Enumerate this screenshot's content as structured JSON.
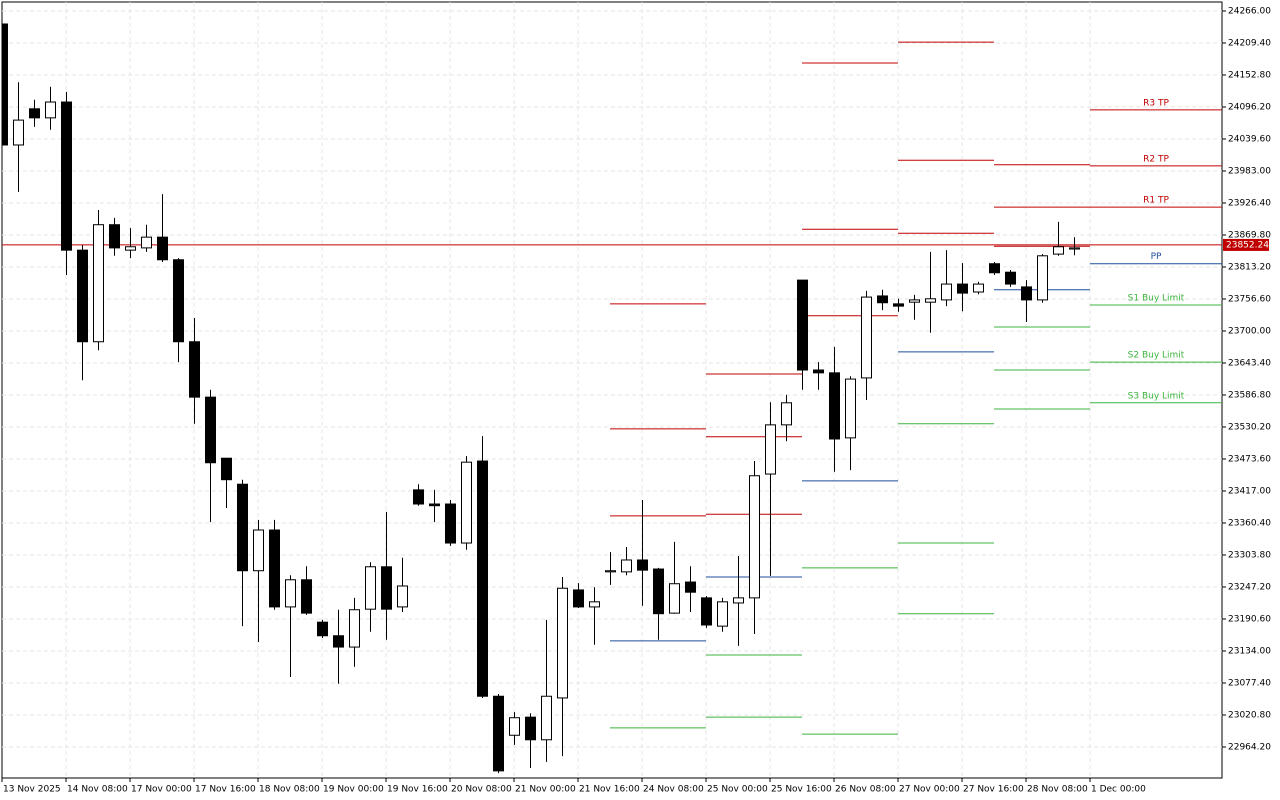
{
  "chart_data": {
    "type": "candlestick",
    "up_color": "#ffffff",
    "down_color": "#000000",
    "outline_color": "#000000",
    "grid": true,
    "ylim": [
      22909.4,
      24281.9
    ],
    "yticks": [
      {
        "value": 24266,
        "label": "24266.00"
      },
      {
        "value": 24209.4,
        "label": "24209.40"
      },
      {
        "value": 24152.8,
        "label": "24152.80"
      },
      {
        "value": 24096.2,
        "label": "24096.20"
      },
      {
        "value": 24039.6,
        "label": "24039.60"
      },
      {
        "value": 23983,
        "label": "23983.00"
      },
      {
        "value": 23926.4,
        "label": "23926.40"
      },
      {
        "value": 23869.8,
        "label": "23869.80"
      },
      {
        "value": 23813.2,
        "label": "23813.20"
      },
      {
        "value": 23756.6,
        "label": "23756.60"
      },
      {
        "value": 23700,
        "label": "23700.00"
      },
      {
        "value": 23643.4,
        "label": "23643.40"
      },
      {
        "value": 23586.8,
        "label": "23586.80"
      },
      {
        "value": 23530.2,
        "label": "23530.20"
      },
      {
        "value": 23473.6,
        "label": "23473.60"
      },
      {
        "value": 23417,
        "label": "23417.00"
      },
      {
        "value": 23360.4,
        "label": "23360.40"
      },
      {
        "value": 23303.8,
        "label": "23303.80"
      },
      {
        "value": 23247.2,
        "label": "23247.20"
      },
      {
        "value": 23190.6,
        "label": "23190.60"
      },
      {
        "value": 23134,
        "label": "23134.00"
      },
      {
        "value": 23077.4,
        "label": "23077.40"
      },
      {
        "value": 23020.8,
        "label": "23020.80"
      },
      {
        "value": 22964.2,
        "label": "22964.20"
      }
    ],
    "x_labels": [
      "13 Nov 2025",
      "14 Nov 08:00",
      "17 Nov 00:00",
      "17 Nov 16:00",
      "18 Nov 08:00",
      "19 Nov 00:00",
      "19 Nov 16:00",
      "20 Nov 08:00",
      "21 Nov 00:00",
      "21 Nov 16:00",
      "24 Nov 08:00",
      "25 Nov 00:00",
      "25 Nov 16:00",
      "26 Nov 08:00",
      "27 Nov 00:00",
      "27 Nov 16:00",
      "28 Nov 08:00",
      "1 Dec 00:00"
    ],
    "candles": [
      [
        24243,
        24243,
        24029,
        24029
      ],
      [
        24029,
        24140,
        23946,
        24073
      ],
      [
        24093,
        24109,
        24061,
        24077
      ],
      [
        24077,
        24132,
        24056,
        24105
      ],
      [
        24105,
        24123,
        23799,
        23843
      ],
      [
        23843,
        23852,
        23613,
        23681
      ],
      [
        23681,
        23914,
        23666,
        23888
      ],
      [
        23888,
        23900,
        23833,
        23847
      ],
      [
        23843,
        23882,
        23829,
        23849
      ],
      [
        23847,
        23888,
        23840,
        23866
      ],
      [
        23866,
        23942,
        23822,
        23826
      ],
      [
        23826,
        23829,
        23645,
        23681
      ],
      [
        23681,
        23723,
        23536,
        23583
      ],
      [
        23583,
        23596,
        23362,
        23467
      ],
      [
        23475,
        23475,
        23387,
        23437
      ],
      [
        23429,
        23437,
        23178,
        23276
      ],
      [
        23276,
        23366,
        23150,
        23348
      ],
      [
        23348,
        23366,
        23207,
        23212
      ],
      [
        23212,
        23268,
        23088,
        23260
      ],
      [
        23260,
        23284,
        23198,
        23201
      ],
      [
        23185,
        23189,
        23157,
        23161
      ],
      [
        23161,
        23207,
        23076,
        23141
      ],
      [
        23141,
        23228,
        23106,
        23207
      ],
      [
        23208,
        23291,
        23168,
        23283
      ],
      [
        23283,
        23380,
        23154,
        23208
      ],
      [
        23212,
        23299,
        23203,
        23249
      ],
      [
        23419,
        23429,
        23391,
        23394
      ],
      [
        23394,
        23419,
        23362,
        23391
      ],
      [
        23394,
        23401,
        23320,
        23325
      ],
      [
        23325,
        23479,
        23313,
        23468
      ],
      [
        23470,
        23514,
        23051,
        23054
      ],
      [
        23054,
        23058,
        22918,
        22922
      ],
      [
        22985,
        23026,
        22968,
        23016
      ],
      [
        23017,
        23024,
        22927,
        22977
      ],
      [
        22977,
        23189,
        22938,
        23054
      ],
      [
        23051,
        23265,
        22948,
        23245
      ],
      [
        23242,
        23254,
        23210,
        23212
      ],
      [
        23212,
        23247,
        23145,
        23221
      ],
      [
        23274,
        23309,
        23251,
        23276
      ],
      [
        23274,
        23318,
        23268,
        23295
      ],
      [
        23295,
        23401,
        23214,
        23277
      ],
      [
        23279,
        23281,
        23154,
        23200
      ],
      [
        23201,
        23327,
        23200,
        23253
      ],
      [
        23256,
        23284,
        23203,
        23238
      ],
      [
        23228,
        23231,
        23175,
        23180
      ],
      [
        23178,
        23228,
        23168,
        23221
      ],
      [
        23219,
        23302,
        23143,
        23228
      ],
      [
        23228,
        23470,
        23164,
        23444
      ],
      [
        23447,
        23574,
        23267,
        23534
      ],
      [
        23534,
        23587,
        23505,
        23573
      ],
      [
        23790,
        23790,
        23596,
        23631
      ],
      [
        23631,
        23645,
        23596,
        23626
      ],
      [
        23626,
        23672,
        23451,
        23509
      ],
      [
        23511,
        23620,
        23454,
        23615
      ],
      [
        23617,
        23771,
        23578,
        23760
      ],
      [
        23762,
        23773,
        23737,
        23750
      ],
      [
        23748,
        23757,
        23734,
        23744
      ],
      [
        23751,
        23764,
        23720,
        23755
      ],
      [
        23751,
        23840,
        23697,
        23757
      ],
      [
        23755,
        23843,
        23744,
        23783
      ],
      [
        23783,
        23820,
        23735,
        23767
      ],
      [
        23769,
        23787,
        23765,
        23783
      ],
      [
        23819,
        23822,
        23799,
        23803
      ],
      [
        23804,
        23808,
        23778,
        23783
      ],
      [
        23778,
        23790,
        23716,
        23755
      ],
      [
        23755,
        23836,
        23750,
        23833
      ],
      [
        23836,
        23893,
        23833,
        23849
      ],
      [
        23845,
        23866,
        23834,
        23847
      ]
    ],
    "current_price": {
      "value": 23852.24,
      "label": "23852.24"
    },
    "current_price_color": "#c00000",
    "pivots": [
      {
        "levels": [
          {
            "value": 23748,
            "color": "#c00000"
          },
          {
            "value": 23527,
            "color": "#c00000"
          },
          {
            "value": 23373,
            "color": "#c00000"
          },
          {
            "value": 23152,
            "color": "#1f4e9c"
          },
          {
            "value": 22998,
            "color": "#3cb43c"
          }
        ]
      },
      {
        "levels": [
          {
            "value": 23624,
            "color": "#c00000"
          },
          {
            "value": 23513,
            "color": "#c00000"
          },
          {
            "value": 23376,
            "color": "#c00000"
          },
          {
            "value": 23265,
            "color": "#1f4e9c"
          },
          {
            "value": 23127,
            "color": "#3cb43c"
          },
          {
            "value": 23017,
            "color": "#3cb43c"
          }
        ]
      },
      {
        "levels": [
          {
            "value": 24174,
            "color": "#c00000"
          },
          {
            "value": 23880,
            "color": "#c00000"
          },
          {
            "value": 23727,
            "color": "#c00000"
          },
          {
            "value": 23435,
            "color": "#1f4e9c"
          },
          {
            "value": 23281,
            "color": "#3cb43c"
          },
          {
            "value": 22987,
            "color": "#3cb43c"
          }
        ]
      },
      {
        "levels": [
          {
            "value": 24211,
            "color": "#c00000"
          },
          {
            "value": 24002,
            "color": "#c00000"
          },
          {
            "value": 23873,
            "color": "#c00000"
          },
          {
            "value": 23663,
            "color": "#1f4e9c"
          },
          {
            "value": 23536,
            "color": "#3cb43c"
          },
          {
            "value": 23325,
            "color": "#3cb43c"
          },
          {
            "value": 23200,
            "color": "#3cb43c"
          }
        ]
      },
      {
        "levels": [
          {
            "value": 23994,
            "color": "#c00000"
          },
          {
            "value": 23919,
            "color": "#c00000"
          },
          {
            "value": 23850,
            "color": "#c00000"
          },
          {
            "value": 23773,
            "color": "#1f4e9c"
          },
          {
            "value": 23707,
            "color": "#3cb43c"
          },
          {
            "value": 23631,
            "color": "#3cb43c"
          },
          {
            "value": 23562,
            "color": "#3cb43c"
          }
        ]
      },
      {
        "levels": [
          {
            "value": 24091,
            "color": "#c00000",
            "label": "R3 TP"
          },
          {
            "value": 23992,
            "color": "#c00000",
            "label": "R2 TP"
          },
          {
            "value": 23919,
            "color": "#c00000",
            "label": "R1 TP"
          },
          {
            "value": 23819,
            "color": "#1f4e9c",
            "label": "PP"
          },
          {
            "value": 23746,
            "color": "#3cb43c",
            "label": "S1 Buy Limit"
          },
          {
            "value": 23645,
            "color": "#3cb43c",
            "label": "S2 Buy Limit"
          },
          {
            "value": 23573,
            "color": "#3cb43c",
            "label": "S3 Buy Limit"
          }
        ]
      }
    ]
  }
}
